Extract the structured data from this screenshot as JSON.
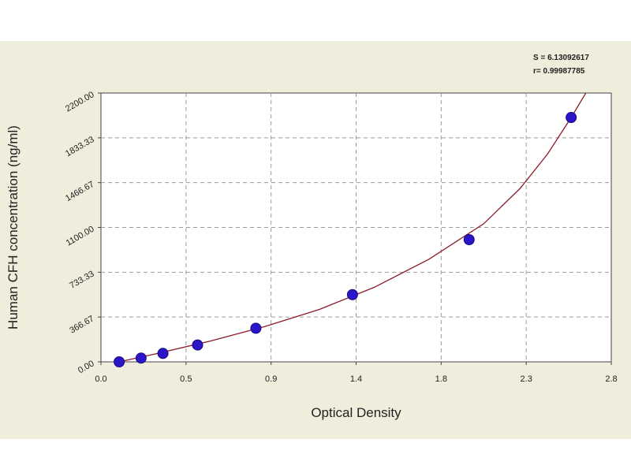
{
  "chart_data": {
    "type": "scatter",
    "xlabel": "Optical Density",
    "ylabel": "Human CFH concentration (ng/ml)",
    "xlim": [
      0.0,
      2.8
    ],
    "ylim": [
      0.0,
      2200.0
    ],
    "x_ticks": [
      "0.0",
      "0.5",
      "0.9",
      "1.4",
      "1.8",
      "2.3",
      "2.8"
    ],
    "y_ticks": [
      "0.00",
      "366.67",
      "733.33",
      "1100.00",
      "1466.67",
      "1833.33",
      "2200.00"
    ],
    "grid": true,
    "stats": [
      "S = 6.13092617",
      "r= 0.99987785"
    ],
    "points": [
      {
        "x": 0.1,
        "y": 0
      },
      {
        "x": 0.22,
        "y": 31
      },
      {
        "x": 0.34,
        "y": 69
      },
      {
        "x": 0.53,
        "y": 138
      },
      {
        "x": 0.85,
        "y": 275
      },
      {
        "x": 1.38,
        "y": 550
      },
      {
        "x": 2.02,
        "y": 1000
      },
      {
        "x": 2.58,
        "y": 2000
      }
    ],
    "fit_curve": [
      {
        "x": 0.1,
        "y": 0
      },
      {
        "x": 0.3,
        "y": 65
      },
      {
        "x": 0.6,
        "y": 170
      },
      {
        "x": 0.9,
        "y": 290
      },
      {
        "x": 1.2,
        "y": 430
      },
      {
        "x": 1.5,
        "y": 610
      },
      {
        "x": 1.8,
        "y": 840
      },
      {
        "x": 2.1,
        "y": 1130
      },
      {
        "x": 2.3,
        "y": 1420
      },
      {
        "x": 2.45,
        "y": 1700
      },
      {
        "x": 2.58,
        "y": 2000
      },
      {
        "x": 2.66,
        "y": 2200
      }
    ],
    "colors": {
      "background": "#efeddc",
      "plot_area": "#ffffff",
      "grid": "#9a9a9a",
      "curve": "#8b1a2a",
      "marker": "#2a16c8",
      "marker_edge": "#1a0a80"
    }
  }
}
